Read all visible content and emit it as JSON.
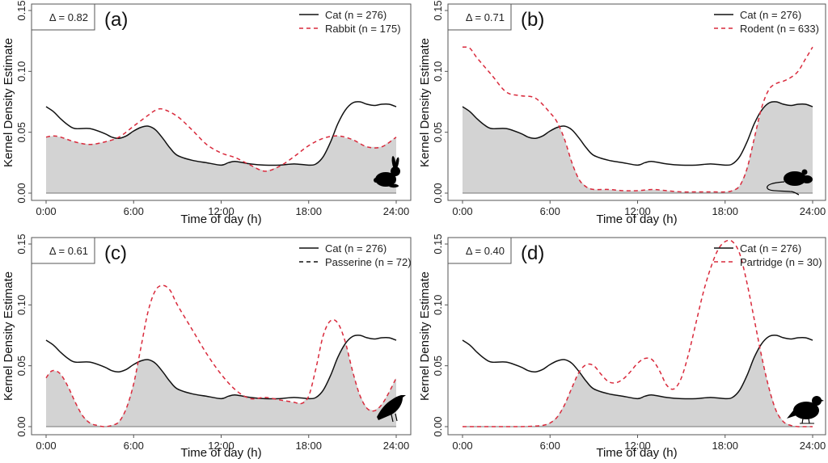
{
  "figure": {
    "title": "",
    "shared_cat_series": "Cat (n = 276)"
  },
  "colors": {
    "cat_line": "#111111",
    "prey_line": "#d92a3c",
    "overlap_fill": "#d3d3d3",
    "axis": "#555555"
  },
  "chart_data": [
    {
      "type": "line",
      "panel_label": "(a)",
      "overlap_label": "Δ = 0.82",
      "title": "",
      "xlabel": "Time of day (h)",
      "ylabel": "Kernel Density Estimate",
      "xlim": [
        0,
        24
      ],
      "ylim": [
        0,
        0.15
      ],
      "xticks": [
        0,
        6,
        12,
        18,
        24
      ],
      "xtick_labels": [
        "0:00",
        "6:00",
        "12:00",
        "18:00",
        "24:00"
      ],
      "yticks": [
        0,
        0.05,
        0.1,
        0.15
      ],
      "ytick_labels": [
        "0.00",
        "0.05",
        "0.10",
        "0.15"
      ],
      "grid": false,
      "legend_position": "top-right",
      "shaded": "overlap (min of both curves)",
      "icon": "rabbit-silhouette",
      "series": [
        {
          "name": "Cat (n = 276)",
          "style": "solid",
          "legend_color": "#111111",
          "x": [
            0,
            0.5,
            1,
            1.5,
            2,
            3,
            4,
            4.5,
            5,
            5.5,
            6,
            6.5,
            7,
            7.5,
            8,
            8.5,
            9,
            10,
            11,
            12,
            12.5,
            13,
            14,
            15,
            16,
            17,
            18,
            18.5,
            19,
            19.5,
            20,
            20.5,
            21,
            21.5,
            22,
            22.5,
            23,
            23.5,
            24
          ],
          "y": [
            0.071,
            0.067,
            0.061,
            0.056,
            0.053,
            0.053,
            0.049,
            0.046,
            0.045,
            0.047,
            0.051,
            0.054,
            0.055,
            0.052,
            0.045,
            0.037,
            0.031,
            0.027,
            0.025,
            0.023,
            0.025,
            0.026,
            0.024,
            0.023,
            0.023,
            0.024,
            0.023,
            0.024,
            0.03,
            0.042,
            0.057,
            0.068,
            0.074,
            0.075,
            0.073,
            0.072,
            0.073,
            0.073,
            0.071
          ]
        },
        {
          "name": "Rabbit (n = 175)",
          "style": "dashed",
          "legend_color": "#d92a3c",
          "x": [
            0,
            0.5,
            1,
            2,
            3,
            4,
            5,
            6,
            7,
            7.5,
            8,
            9,
            10,
            11,
            12,
            13,
            14,
            15,
            16,
            17,
            18,
            19,
            20,
            21,
            22,
            23,
            24
          ],
          "y": [
            0.046,
            0.047,
            0.046,
            0.042,
            0.04,
            0.042,
            0.046,
            0.055,
            0.064,
            0.068,
            0.069,
            0.063,
            0.052,
            0.04,
            0.033,
            0.029,
            0.023,
            0.018,
            0.022,
            0.03,
            0.039,
            0.045,
            0.047,
            0.044,
            0.038,
            0.038,
            0.046
          ]
        }
      ]
    },
    {
      "type": "line",
      "panel_label": "(b)",
      "overlap_label": "Δ = 0.71",
      "title": "",
      "xlabel": "Time of day (h)",
      "ylabel": "Kernel Density Estimate",
      "xlim": [
        0,
        24
      ],
      "ylim": [
        0,
        0.15
      ],
      "xticks": [
        0,
        6,
        12,
        18,
        24
      ],
      "xtick_labels": [
        "0:00",
        "6:00",
        "12:00",
        "18:00",
        "24:00"
      ],
      "yticks": [
        0,
        0.05,
        0.1,
        0.15
      ],
      "ytick_labels": [
        "0.00",
        "0.05",
        "0.10",
        "0.15"
      ],
      "grid": false,
      "legend_position": "top-right",
      "shaded": "overlap (min of both curves)",
      "icon": "mouse-silhouette",
      "series": [
        {
          "name": "Cat (n = 276)",
          "style": "solid",
          "legend_color": "#111111",
          "x": [
            0,
            0.5,
            1,
            1.5,
            2,
            3,
            4,
            4.5,
            5,
            5.5,
            6,
            6.5,
            7,
            7.5,
            8,
            8.5,
            9,
            10,
            11,
            12,
            12.5,
            13,
            14,
            15,
            16,
            17,
            18,
            18.5,
            19,
            19.5,
            20,
            20.5,
            21,
            21.5,
            22,
            22.5,
            23,
            23.5,
            24
          ],
          "y": [
            0.071,
            0.067,
            0.061,
            0.056,
            0.053,
            0.053,
            0.049,
            0.046,
            0.045,
            0.047,
            0.051,
            0.054,
            0.055,
            0.052,
            0.045,
            0.037,
            0.031,
            0.027,
            0.025,
            0.023,
            0.025,
            0.026,
            0.024,
            0.023,
            0.023,
            0.024,
            0.023,
            0.024,
            0.03,
            0.042,
            0.057,
            0.068,
            0.074,
            0.075,
            0.073,
            0.072,
            0.073,
            0.073,
            0.071
          ]
        },
        {
          "name": "Rodent (n = 633)",
          "style": "dashed",
          "legend_color": "#d92a3c",
          "x": [
            0,
            0.5,
            1,
            2,
            3,
            4,
            5,
            6,
            6.5,
            7,
            7.5,
            8,
            8.5,
            9,
            10,
            11,
            12,
            13,
            14,
            15,
            16,
            17,
            18,
            18.5,
            19,
            19.5,
            20,
            20.5,
            21,
            21.5,
            22,
            22.5,
            23,
            23.5,
            24
          ],
          "y": [
            0.12,
            0.119,
            0.111,
            0.097,
            0.083,
            0.08,
            0.078,
            0.066,
            0.058,
            0.044,
            0.025,
            0.011,
            0.005,
            0.003,
            0.003,
            0.002,
            0.002,
            0.003,
            0.002,
            0.001,
            0.001,
            0.001,
            0.001,
            0.002,
            0.006,
            0.02,
            0.045,
            0.07,
            0.085,
            0.09,
            0.092,
            0.095,
            0.1,
            0.11,
            0.12
          ]
        }
      ]
    },
    {
      "type": "line",
      "panel_label": "(c)",
      "overlap_label": "Δ = 0.61",
      "title": "",
      "xlabel": "Time of day (h)",
      "ylabel": "Kernel Density Estimate",
      "xlim": [
        0,
        24
      ],
      "ylim": [
        0,
        0.15
      ],
      "xticks": [
        0,
        6,
        12,
        18,
        24
      ],
      "xtick_labels": [
        "0:00",
        "6:00",
        "12:00",
        "18:00",
        "24:00"
      ],
      "yticks": [
        0,
        0.05,
        0.1,
        0.15
      ],
      "ytick_labels": [
        "0.00",
        "0.05",
        "0.10",
        "0.15"
      ],
      "grid": false,
      "legend_position": "top-right",
      "shaded": "overlap (min of both curves)",
      "icon": "songbird-silhouette",
      "series": [
        {
          "name": "Cat (n = 276)",
          "style": "solid",
          "legend_color": "#111111",
          "x": [
            0,
            0.5,
            1,
            1.5,
            2,
            3,
            4,
            4.5,
            5,
            5.5,
            6,
            6.5,
            7,
            7.5,
            8,
            8.5,
            9,
            10,
            11,
            12,
            12.5,
            13,
            14,
            15,
            16,
            17,
            18,
            18.5,
            19,
            19.5,
            20,
            20.5,
            21,
            21.5,
            22,
            22.5,
            23,
            23.5,
            24
          ],
          "y": [
            0.071,
            0.067,
            0.061,
            0.056,
            0.053,
            0.053,
            0.049,
            0.046,
            0.045,
            0.047,
            0.051,
            0.054,
            0.055,
            0.052,
            0.045,
            0.037,
            0.031,
            0.027,
            0.025,
            0.023,
            0.025,
            0.026,
            0.024,
            0.023,
            0.023,
            0.024,
            0.023,
            0.024,
            0.03,
            0.042,
            0.057,
            0.068,
            0.074,
            0.075,
            0.073,
            0.072,
            0.073,
            0.073,
            0.071
          ]
        },
        {
          "name": "Passerine (n = 72)",
          "style": "dashed",
          "legend_color": "#111111",
          "x": [
            0,
            0.3,
            0.6,
            1,
            1.5,
            2,
            2.5,
            3,
            3.5,
            4,
            4.5,
            5,
            5.5,
            6,
            6.5,
            7,
            7.5,
            8,
            8.5,
            9,
            10,
            11,
            12,
            13,
            14,
            15,
            16,
            17,
            17.5,
            18,
            18.5,
            19,
            19.5,
            20,
            20.5,
            21,
            21.5,
            22,
            22.5,
            23,
            23.5,
            24
          ],
          "y": [
            0.04,
            0.045,
            0.046,
            0.043,
            0.033,
            0.02,
            0.009,
            0.003,
            0.001,
            0.0,
            0.001,
            0.004,
            0.015,
            0.035,
            0.065,
            0.095,
            0.112,
            0.116,
            0.112,
            0.1,
            0.08,
            0.06,
            0.043,
            0.03,
            0.023,
            0.024,
            0.022,
            0.02,
            0.019,
            0.025,
            0.048,
            0.075,
            0.087,
            0.085,
            0.07,
            0.046,
            0.026,
            0.015,
            0.013,
            0.018,
            0.028,
            0.04
          ]
        }
      ]
    },
    {
      "type": "line",
      "panel_label": "(d)",
      "overlap_label": "Δ = 0.40",
      "title": "",
      "xlabel": "Time of day (h)",
      "ylabel": "Kernel Density Estimate",
      "xlim": [
        0,
        24
      ],
      "ylim": [
        0,
        0.15
      ],
      "xticks": [
        0,
        6,
        12,
        18,
        24
      ],
      "xtick_labels": [
        "0:00",
        "6:00",
        "12:00",
        "18:00",
        "24:00"
      ],
      "yticks": [
        0,
        0.05,
        0.1,
        0.15
      ],
      "ytick_labels": [
        "0.00",
        "0.05",
        "0.10",
        "0.15"
      ],
      "grid": false,
      "legend_position": "top-right",
      "shaded": "overlap (min of both curves)",
      "icon": "partridge-silhouette",
      "series": [
        {
          "name": "Cat (n = 276)",
          "style": "solid",
          "legend_color": "#111111",
          "x": [
            0,
            0.5,
            1,
            1.5,
            2,
            3,
            4,
            4.5,
            5,
            5.5,
            6,
            6.5,
            7,
            7.5,
            8,
            8.5,
            9,
            10,
            11,
            12,
            12.5,
            13,
            14,
            15,
            16,
            17,
            18,
            18.5,
            19,
            19.5,
            20,
            20.5,
            21,
            21.5,
            22,
            22.5,
            23,
            23.5,
            24
          ],
          "y": [
            0.071,
            0.067,
            0.061,
            0.056,
            0.053,
            0.053,
            0.049,
            0.046,
            0.045,
            0.047,
            0.051,
            0.054,
            0.055,
            0.052,
            0.045,
            0.037,
            0.031,
            0.027,
            0.025,
            0.023,
            0.025,
            0.026,
            0.024,
            0.023,
            0.023,
            0.024,
            0.023,
            0.024,
            0.03,
            0.042,
            0.057,
            0.068,
            0.074,
            0.075,
            0.073,
            0.072,
            0.073,
            0.073,
            0.071
          ]
        },
        {
          "name": "Partridge (n = 30)",
          "style": "dashed",
          "legend_color": "#d92a3c",
          "x": [
            0,
            1,
            2,
            3,
            4,
            5,
            5.5,
            6,
            6.5,
            7,
            7.5,
            8,
            8.5,
            9,
            9.5,
            10,
            10.5,
            11,
            11.5,
            12,
            12.5,
            13,
            13.5,
            14,
            14.5,
            15,
            15.5,
            16,
            16.5,
            17,
            17.5,
            18,
            18.5,
            19,
            19.5,
            20,
            20.5,
            21,
            21.5,
            22,
            22.5,
            23,
            23.5,
            24
          ],
          "y": [
            0,
            0,
            0,
            0,
            0,
            0.0005,
            0.001,
            0.003,
            0.008,
            0.018,
            0.032,
            0.045,
            0.051,
            0.05,
            0.043,
            0.037,
            0.036,
            0.039,
            0.045,
            0.052,
            0.056,
            0.055,
            0.046,
            0.034,
            0.031,
            0.04,
            0.06,
            0.085,
            0.11,
            0.13,
            0.145,
            0.152,
            0.152,
            0.142,
            0.118,
            0.088,
            0.058,
            0.032,
            0.013,
            0.004,
            0.001,
            0.0,
            0.0,
            0.0
          ]
        }
      ]
    }
  ]
}
